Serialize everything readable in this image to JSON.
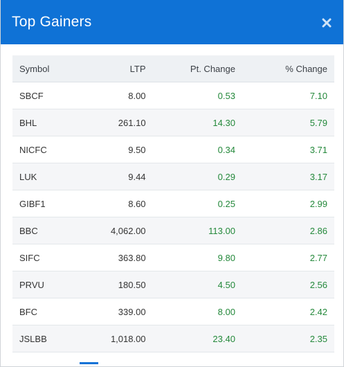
{
  "header": {
    "title": "Top Gainers",
    "close_icon": "close-icon",
    "background_color": "#0f72d6"
  },
  "table": {
    "columns": [
      "Symbol",
      "LTP",
      "Pt. Change",
      "% Change"
    ],
    "rows": [
      {
        "symbol": "SBCF",
        "ltp": "8.00",
        "pt_change": "0.53",
        "pct_change": "7.10"
      },
      {
        "symbol": "BHL",
        "ltp": "261.10",
        "pt_change": "14.30",
        "pct_change": "5.79"
      },
      {
        "symbol": "NICFC",
        "ltp": "9.50",
        "pt_change": "0.34",
        "pct_change": "3.71"
      },
      {
        "symbol": "LUK",
        "ltp": "9.44",
        "pt_change": "0.29",
        "pct_change": "3.17"
      },
      {
        "symbol": "GIBF1",
        "ltp": "8.60",
        "pt_change": "0.25",
        "pct_change": "2.99"
      },
      {
        "symbol": "BBC",
        "ltp": "4,062.00",
        "pt_change": "113.00",
        "pct_change": "2.86"
      },
      {
        "symbol": "SIFC",
        "ltp": "363.80",
        "pt_change": "9.80",
        "pct_change": "2.77"
      },
      {
        "symbol": "PRVU",
        "ltp": "180.50",
        "pt_change": "4.50",
        "pct_change": "2.56"
      },
      {
        "symbol": "BFC",
        "ltp": "339.00",
        "pt_change": "8.00",
        "pct_change": "2.42"
      },
      {
        "symbol": "JSLBB",
        "ltp": "1,018.00",
        "pt_change": "23.40",
        "pct_change": "2.35"
      }
    ],
    "gain_color": "#23883a"
  }
}
